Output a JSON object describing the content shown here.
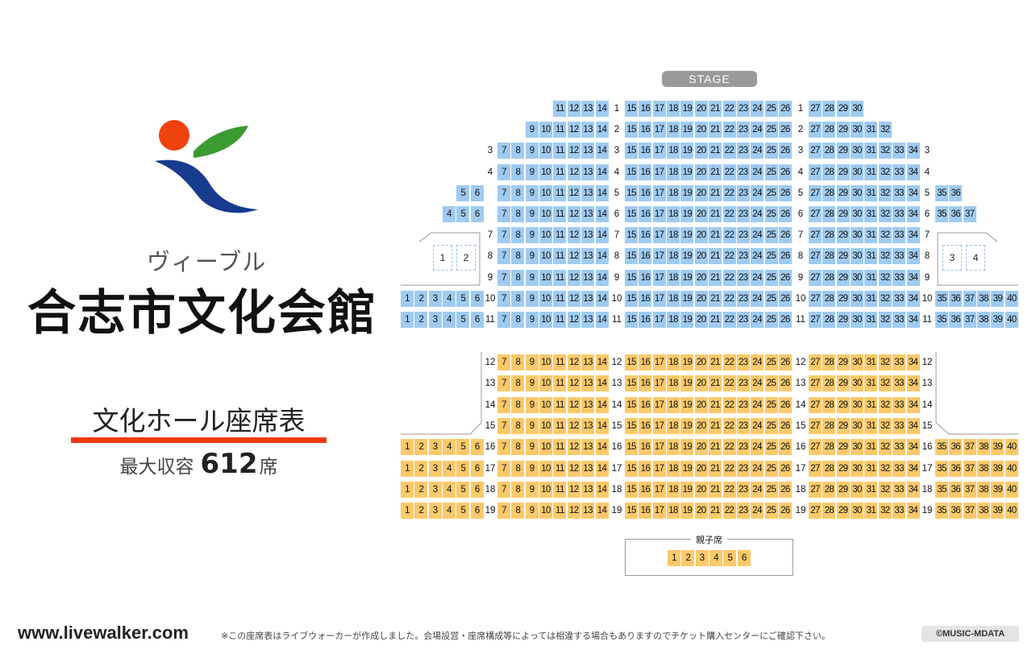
{
  "header": {
    "venue_kana": "ヴィーブル",
    "venue_name": "合志市文化会館",
    "hall_title": "文化ホール座席表",
    "capacity_label": "最大収容",
    "capacity_value": "612",
    "capacity_unit": "席"
  },
  "seat_map": {
    "stage_label": "STAGE",
    "oyako_label": "親子席",
    "oyako_seats": [
      1,
      2,
      3,
      4,
      5,
      6
    ],
    "box_seats_left": [
      1,
      2
    ],
    "box_seats_right": [
      3,
      4
    ],
    "colors": {
      "first_floor_front": "#9fcbf2",
      "first_floor_rear": "#fcc96a",
      "box": "#9cc0e6"
    },
    "rows": [
      {
        "row": 1,
        "color": "b",
        "left_outer": [],
        "left": [
          11,
          12,
          13,
          14
        ],
        "center": [
          15,
          16,
          17,
          18,
          19,
          20,
          21,
          22,
          23,
          24,
          25,
          26
        ],
        "right": [
          27,
          28,
          29,
          30
        ],
        "right_outer": [],
        "label_left": false,
        "label_right": false
      },
      {
        "row": 2,
        "color": "b",
        "left_outer": [],
        "left": [
          9,
          10,
          11,
          12,
          13,
          14
        ],
        "center": [
          15,
          16,
          17,
          18,
          19,
          20,
          21,
          22,
          23,
          24,
          25,
          26
        ],
        "right": [
          27,
          28,
          29,
          30,
          31,
          32
        ],
        "right_outer": [],
        "label_left": false,
        "label_right": false
      },
      {
        "row": 3,
        "color": "b",
        "left_outer": [],
        "left": [
          7,
          8,
          9,
          10,
          11,
          12,
          13,
          14
        ],
        "center": [
          15,
          16,
          17,
          18,
          19,
          20,
          21,
          22,
          23,
          24,
          25,
          26
        ],
        "right": [
          27,
          28,
          29,
          30,
          31,
          32,
          33,
          34
        ],
        "right_outer": [],
        "label_left": true,
        "label_right": true
      },
      {
        "row": 4,
        "color": "b",
        "left_outer": [],
        "left": [
          7,
          8,
          9,
          10,
          11,
          12,
          13,
          14
        ],
        "center": [
          15,
          16,
          17,
          18,
          19,
          20,
          21,
          22,
          23,
          24,
          25,
          26
        ],
        "right": [
          27,
          28,
          29,
          30,
          31,
          32,
          33,
          34
        ],
        "right_outer": [],
        "label_left": true,
        "label_right": true
      },
      {
        "row": 5,
        "color": "b",
        "left_outer": [
          5,
          6
        ],
        "left": [
          7,
          8,
          9,
          10,
          11,
          12,
          13,
          14
        ],
        "center": [
          15,
          16,
          17,
          18,
          19,
          20,
          21,
          22,
          23,
          24,
          25,
          26
        ],
        "right": [
          27,
          28,
          29,
          30,
          31,
          32,
          33,
          34
        ],
        "right_outer": [
          35,
          36
        ],
        "label_left": false,
        "label_right": true
      },
      {
        "row": 6,
        "color": "b",
        "left_outer": [
          4,
          5,
          6
        ],
        "left": [
          7,
          8,
          9,
          10,
          11,
          12,
          13,
          14
        ],
        "center": [
          15,
          16,
          17,
          18,
          19,
          20,
          21,
          22,
          23,
          24,
          25,
          26
        ],
        "right": [
          27,
          28,
          29,
          30,
          31,
          32,
          33,
          34
        ],
        "right_outer": [
          35,
          36,
          37
        ],
        "label_left": false,
        "label_right": true
      },
      {
        "row": 7,
        "color": "b",
        "left_outer": [],
        "left": [
          7,
          8,
          9,
          10,
          11,
          12,
          13,
          14
        ],
        "center": [
          15,
          16,
          17,
          18,
          19,
          20,
          21,
          22,
          23,
          24,
          25,
          26
        ],
        "right": [
          27,
          28,
          29,
          30,
          31,
          32,
          33,
          34
        ],
        "right_outer": [],
        "label_left": true,
        "label_right": true
      },
      {
        "row": 8,
        "color": "b",
        "left_outer": [],
        "left": [
          7,
          8,
          9,
          10,
          11,
          12,
          13,
          14
        ],
        "center": [
          15,
          16,
          17,
          18,
          19,
          20,
          21,
          22,
          23,
          24,
          25,
          26
        ],
        "right": [
          27,
          28,
          29,
          30,
          31,
          32,
          33,
          34
        ],
        "right_outer": [],
        "label_left": true,
        "label_right": true
      },
      {
        "row": 9,
        "color": "b",
        "left_outer": [],
        "left": [
          7,
          8,
          9,
          10,
          11,
          12,
          13,
          14
        ],
        "center": [
          15,
          16,
          17,
          18,
          19,
          20,
          21,
          22,
          23,
          24,
          25,
          26
        ],
        "right": [
          27,
          28,
          29,
          30,
          31,
          32,
          33,
          34
        ],
        "right_outer": [],
        "label_left": true,
        "label_right": true
      },
      {
        "row": 10,
        "color": "b",
        "left_outer": [
          1,
          2,
          3,
          4,
          5,
          6
        ],
        "left": [
          7,
          8,
          9,
          10,
          11,
          12,
          13,
          14
        ],
        "center": [
          15,
          16,
          17,
          18,
          19,
          20,
          21,
          22,
          23,
          24,
          25,
          26
        ],
        "right": [
          27,
          28,
          29,
          30,
          31,
          32,
          33,
          34
        ],
        "right_outer": [
          35,
          36,
          37,
          38,
          39,
          40
        ],
        "label_left": true,
        "label_right": true
      },
      {
        "row": 11,
        "color": "b",
        "left_outer": [
          1,
          2,
          3,
          4,
          5,
          6
        ],
        "left": [
          7,
          8,
          9,
          10,
          11,
          12,
          13,
          14
        ],
        "center": [
          15,
          16,
          17,
          18,
          19,
          20,
          21,
          22,
          23,
          24,
          25,
          26
        ],
        "right": [
          27,
          28,
          29,
          30,
          31,
          32,
          33,
          34
        ],
        "right_outer": [
          35,
          36,
          37,
          38,
          39,
          40
        ],
        "label_left": true,
        "label_right": true
      },
      {
        "row": 12,
        "color": "y",
        "left_outer": [],
        "left": [
          7,
          8,
          9,
          10,
          11,
          12,
          13,
          14
        ],
        "center": [
          15,
          16,
          17,
          18,
          19,
          20,
          21,
          22,
          23,
          24,
          25,
          26
        ],
        "right": [
          27,
          28,
          29,
          30,
          31,
          32,
          33,
          34
        ],
        "right_outer": [],
        "label_left": true,
        "label_right": true
      },
      {
        "row": 13,
        "color": "y",
        "left_outer": [],
        "left": [
          7,
          8,
          9,
          10,
          11,
          12,
          13,
          14
        ],
        "center": [
          15,
          16,
          17,
          18,
          19,
          20,
          21,
          22,
          23,
          24,
          25,
          26
        ],
        "right": [
          27,
          28,
          29,
          30,
          31,
          32,
          33,
          34
        ],
        "right_outer": [],
        "label_left": true,
        "label_right": true
      },
      {
        "row": 14,
        "color": "y",
        "left_outer": [],
        "left": [
          7,
          8,
          9,
          10,
          11,
          12,
          13,
          14
        ],
        "center": [
          15,
          16,
          17,
          18,
          19,
          20,
          21,
          22,
          23,
          24,
          25,
          26
        ],
        "right": [
          27,
          28,
          29,
          30,
          31,
          32,
          33,
          34
        ],
        "right_outer": [],
        "label_left": true,
        "label_right": true
      },
      {
        "row": 15,
        "color": "y",
        "left_outer": [],
        "left": [
          7,
          8,
          9,
          10,
          11,
          12,
          13,
          14
        ],
        "center": [
          15,
          16,
          17,
          18,
          19,
          20,
          21,
          22,
          23,
          24,
          25,
          26
        ],
        "right": [
          27,
          28,
          29,
          30,
          31,
          32,
          33,
          34
        ],
        "right_outer": [],
        "label_left": true,
        "label_right": true
      },
      {
        "row": 16,
        "color": "y",
        "left_outer": [
          1,
          2,
          3,
          4,
          5,
          6
        ],
        "left": [
          7,
          8,
          9,
          10,
          11,
          12,
          13,
          14
        ],
        "center": [
          15,
          16,
          17,
          18,
          19,
          20,
          21,
          22,
          23,
          24,
          25,
          26
        ],
        "right": [
          27,
          28,
          29,
          30,
          31,
          32,
          33,
          34
        ],
        "right_outer": [
          35,
          36,
          37,
          38,
          39,
          40
        ],
        "label_left": true,
        "label_right": true
      },
      {
        "row": 17,
        "color": "y",
        "left_outer": [
          1,
          2,
          3,
          4,
          5,
          6
        ],
        "left": [
          7,
          8,
          9,
          10,
          11,
          12,
          13,
          14
        ],
        "center": [
          15,
          16,
          17,
          18,
          19,
          20,
          21,
          22,
          23,
          24,
          25,
          26
        ],
        "right": [
          27,
          28,
          29,
          30,
          31,
          32,
          33,
          34
        ],
        "right_outer": [
          35,
          36,
          37,
          38,
          39,
          40
        ],
        "label_left": true,
        "label_right": true
      },
      {
        "row": 18,
        "color": "y",
        "left_outer": [
          1,
          2,
          3,
          4,
          5,
          6
        ],
        "left": [
          7,
          8,
          9,
          10,
          11,
          12,
          13,
          14
        ],
        "center": [
          15,
          16,
          17,
          18,
          19,
          20,
          21,
          22,
          23,
          24,
          25,
          26
        ],
        "right": [
          27,
          28,
          29,
          30,
          31,
          32,
          33,
          34
        ],
        "right_outer": [
          35,
          36,
          37,
          38,
          39,
          40
        ],
        "label_left": true,
        "label_right": true
      },
      {
        "row": 19,
        "color": "y",
        "left_outer": [
          1,
          2,
          3,
          4,
          5,
          6
        ],
        "left": [
          7,
          8,
          9,
          10,
          11,
          12,
          13,
          14
        ],
        "center": [
          15,
          16,
          17,
          18,
          19,
          20,
          21,
          22,
          23,
          24,
          25,
          26
        ],
        "right": [
          27,
          28,
          29,
          30,
          31,
          32,
          33,
          34
        ],
        "right_outer": [
          35,
          36,
          37,
          38,
          39,
          40
        ],
        "label_left": true,
        "label_right": true
      }
    ]
  },
  "footer": {
    "url": "www.livewalker.com",
    "note": "※この座席表はライブウォーカーが作成しました。会場設営・座席構成等によっては相違する場合もありますのでチケット購入センターにご確認下さい。",
    "copyright": "©MUSIC-MDATA"
  }
}
